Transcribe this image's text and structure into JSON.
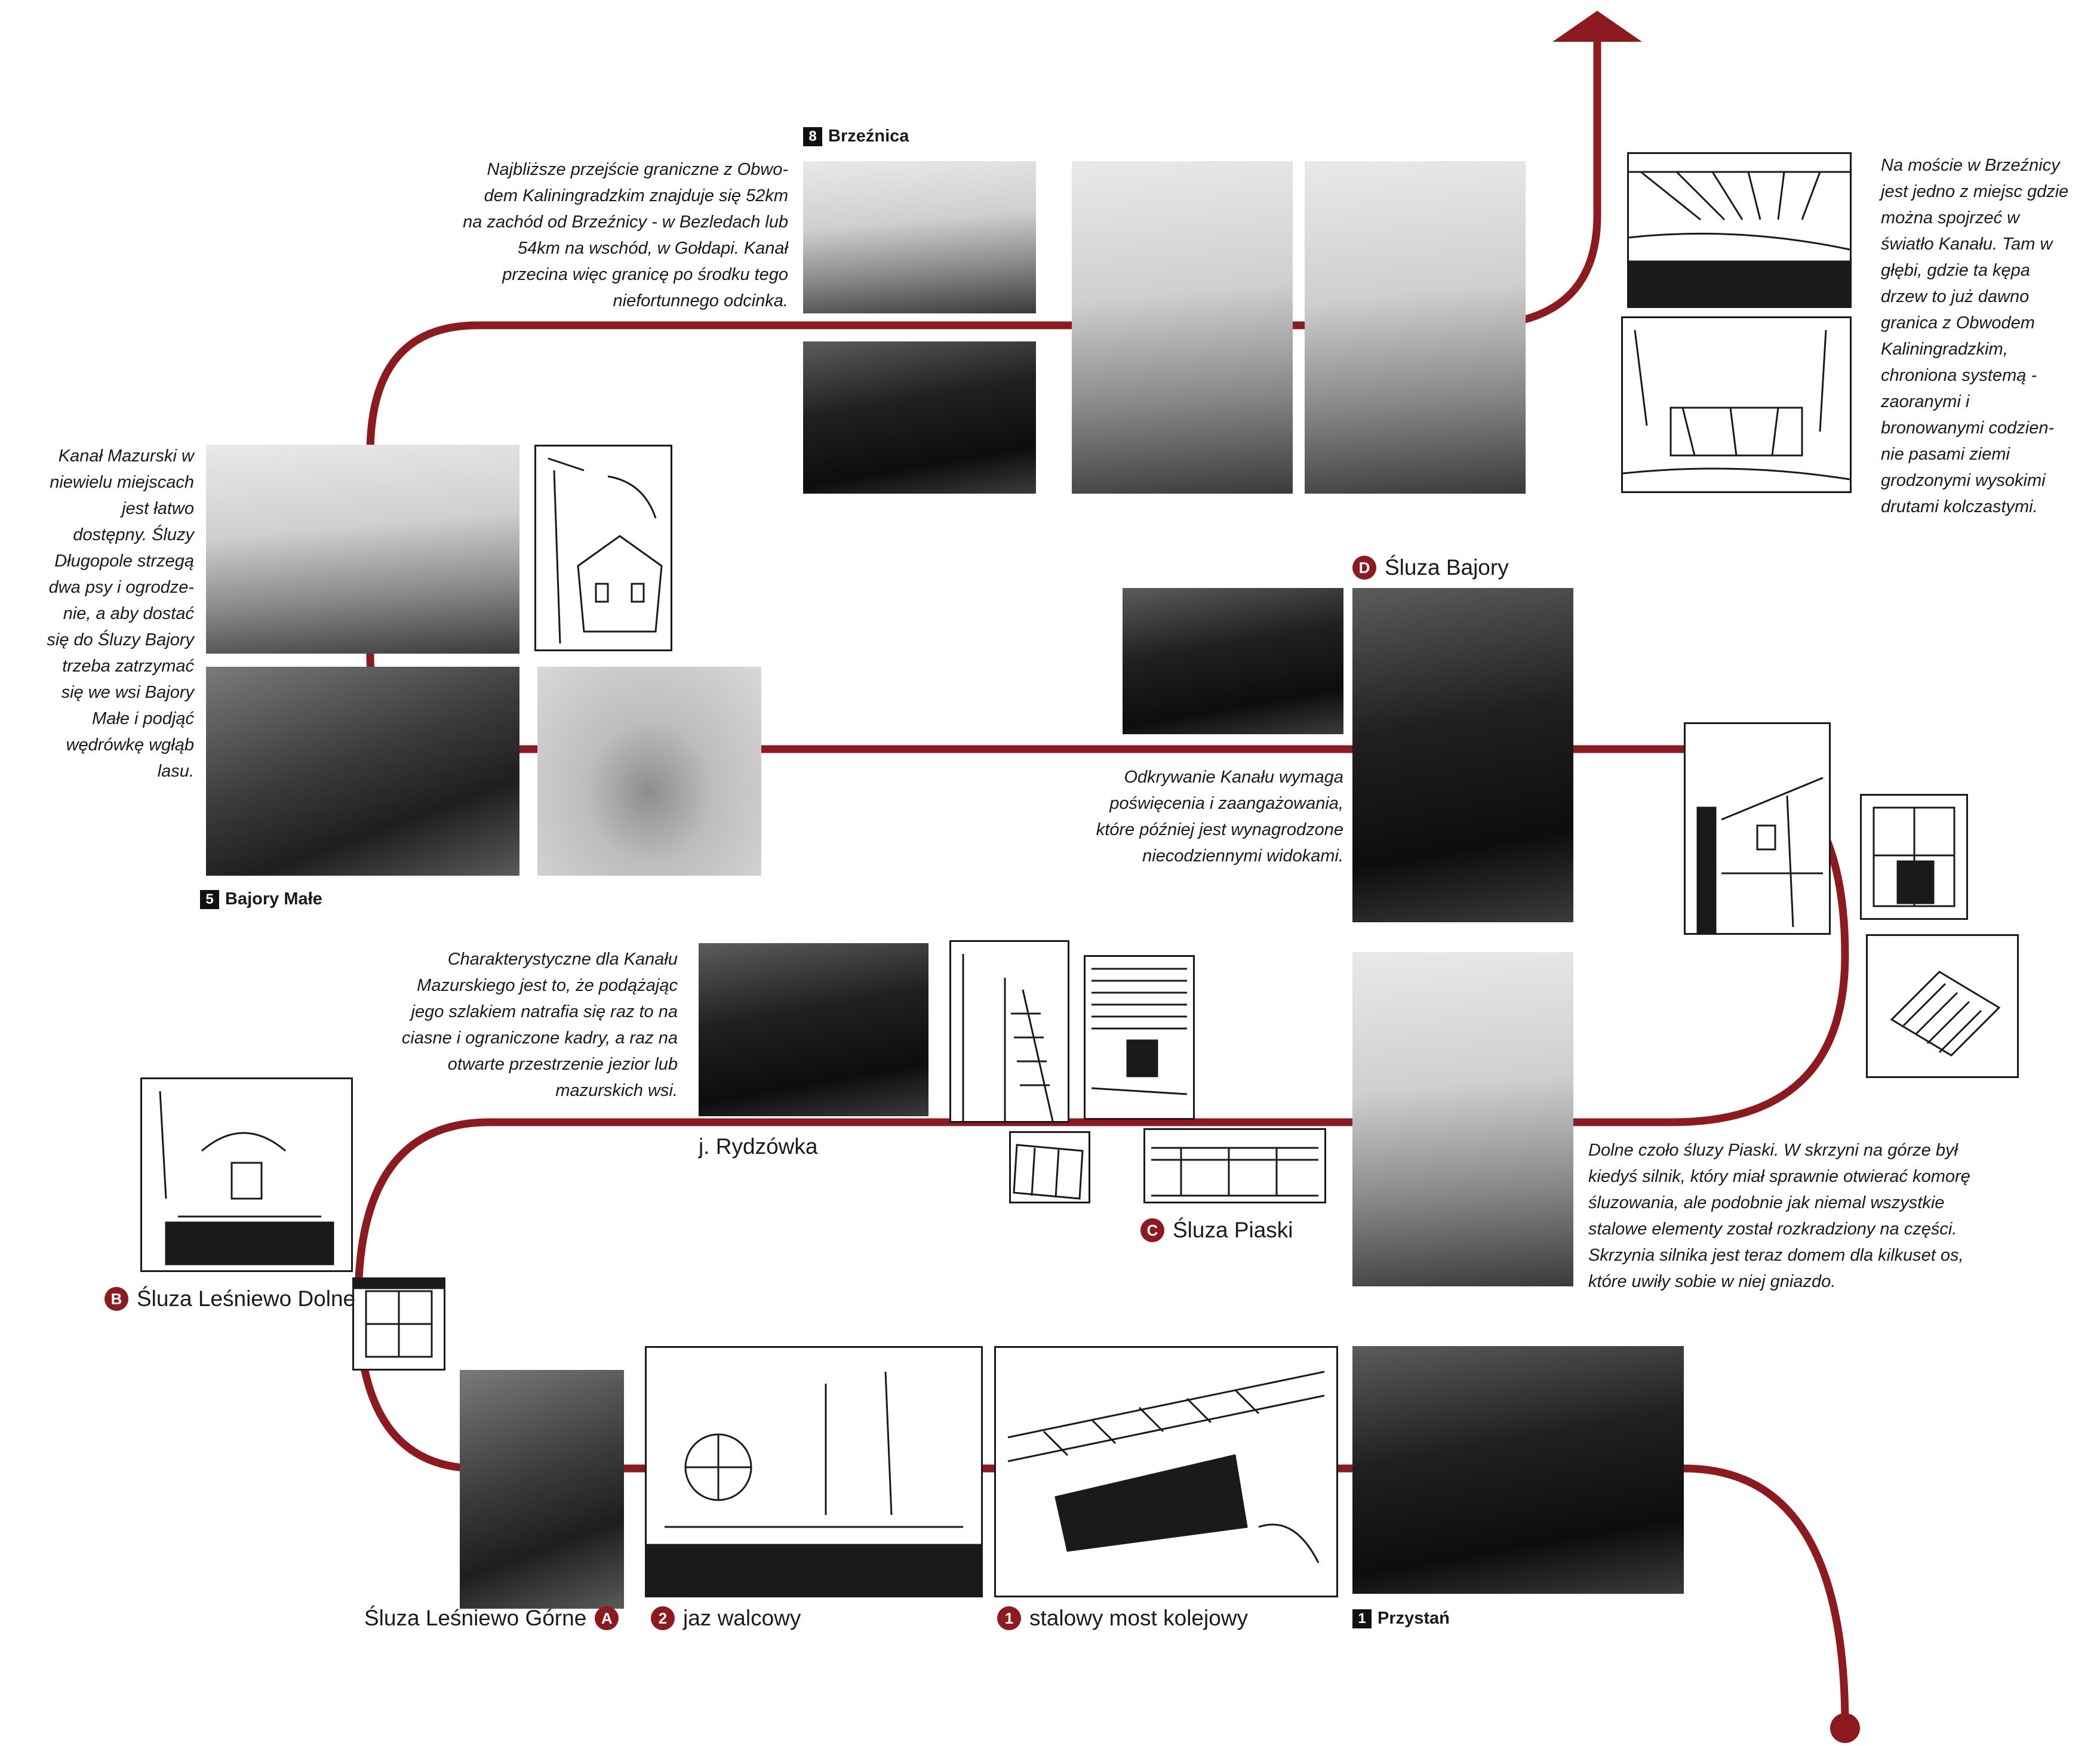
{
  "colors": {
    "route": "#8c1a1f",
    "text": "#1a1a1a",
    "badge": "#8c1a1f"
  },
  "labels": {
    "przystan": {
      "badge": "1",
      "text": "Przystań"
    },
    "most": {
      "badge": "1",
      "text": "stalowy most kolejowy"
    },
    "jaz": {
      "badge": "2",
      "text": "jaz walcowy"
    },
    "lesniewo_gorne": {
      "badge": "A",
      "text": "Śluza Leśniewo Górne"
    },
    "lesniewo_dolne": {
      "badge": "B",
      "text": "Śluza Leśniewo Dolne"
    },
    "piaski": {
      "badge": "C",
      "text": "Śluza Piaski"
    },
    "rydzowka": {
      "text": "j. Rydzówka"
    },
    "bajory": {
      "badge": "D",
      "text": "Śluza Bajory"
    },
    "bajory_male": {
      "badge": "5",
      "text": "Bajory Małe"
    },
    "brzeznica": {
      "badge": "8",
      "text": "Brzeźnica"
    }
  },
  "captions": {
    "brzeznica_border": [
      "Najbliższe przejście graniczne z Obwo-",
      "dem Kaliningradzkim znajduje się 52km",
      "na zachód od Brzeźnicy - w Bezledach lub",
      "54km na wschód, w Gołdapi. Kanał",
      "przecina więc granicę po środku tego",
      "niefortunnego odcinka."
    ],
    "kanal_mazurski": [
      "Kanał Mazurski w",
      "niewielu miejscach",
      "jest łatwo",
      "dostępny. Śluzy",
      "Długopole strzegą",
      "dwa psy i ogrodze-",
      "nie, a aby dostać",
      "się do Śluzy Bajory",
      "trzeba zatrzymać",
      "się we wsi Bajory",
      "Małe i podjąć",
      "wędrówkę wgłąb",
      "lasu."
    ],
    "most_brzeznica": [
      "Na moście w Brzeźnicy",
      "jest jedno z miejsc gdzie",
      "można spojrzeć w",
      "światło Kanału. Tam w",
      "głębi, gdzie ta kępa",
      "drzew to już dawno",
      "granica z Obwodem",
      "Kaliningradzkim,",
      "chroniona systemą -",
      "zaoranymi i",
      "bronowanymi codzien-",
      "nie pasami ziemi",
      "grodzonymi wysokimi",
      "drutami kolczastymi."
    ],
    "odkrywanie": [
      "Odkrywanie Kanału wymaga",
      "poświęcenia i zaangażowania,",
      "które później jest wynagrodzone",
      "niecodziennymi widokami."
    ],
    "charakterystyczne": [
      "Charakterystyczne dla Kanału",
      "Mazurskiego jest to, że podążając",
      "jego szlakiem natrafia się raz to na",
      "ciasne i ograniczone kadry, a raz na",
      "otwarte przestrzenie jezior lub",
      "mazurskich wsi."
    ],
    "piaski_czolo": [
      "Dolne czoło śluzy Piaski. W skrzyni na górze był",
      "kiedyś silnik, który miał sprawnie otwierać komorę",
      "śluzowania, ale podobnie jak niemal wszystkie",
      "stalowe elementy został rozkradziony na części.",
      "Skrzynia silnika jest teraz domem dla kilkuset os,",
      "które uwiły sobie w niej gniazdo."
    ]
  },
  "photos": [
    {
      "name": "brzeznica-building-photo"
    },
    {
      "name": "brzeznica-forest-photo"
    },
    {
      "name": "bridge-truss-photo"
    },
    {
      "name": "bridge-view-photo"
    },
    {
      "name": "canal-fence-photo"
    },
    {
      "name": "cows-road-photo"
    },
    {
      "name": "stork-nest-photo"
    },
    {
      "name": "bajory-canal-photo"
    },
    {
      "name": "sluza-bajory-photo"
    },
    {
      "name": "rydzowka-lake-photo"
    },
    {
      "name": "sluza-piaski-photo"
    },
    {
      "name": "lesniewo-gorne-photo"
    },
    {
      "name": "przystan-boathouse-photo"
    }
  ],
  "sketches": [
    {
      "name": "bridge-underside-sketch"
    },
    {
      "name": "bridge-border-sketch"
    },
    {
      "name": "house-sketch"
    },
    {
      "name": "piaski-wall-sketch"
    },
    {
      "name": "window-sketch"
    },
    {
      "name": "hatch-sketch"
    },
    {
      "name": "stairs-sketch"
    },
    {
      "name": "tower-sketch"
    },
    {
      "name": "grate-sketch"
    },
    {
      "name": "railing-sketch"
    },
    {
      "name": "lesniewo-dolne-sketch"
    },
    {
      "name": "window-small-sketch"
    },
    {
      "name": "jaz-sketch"
    },
    {
      "name": "railway-bridge-sketch"
    }
  ]
}
